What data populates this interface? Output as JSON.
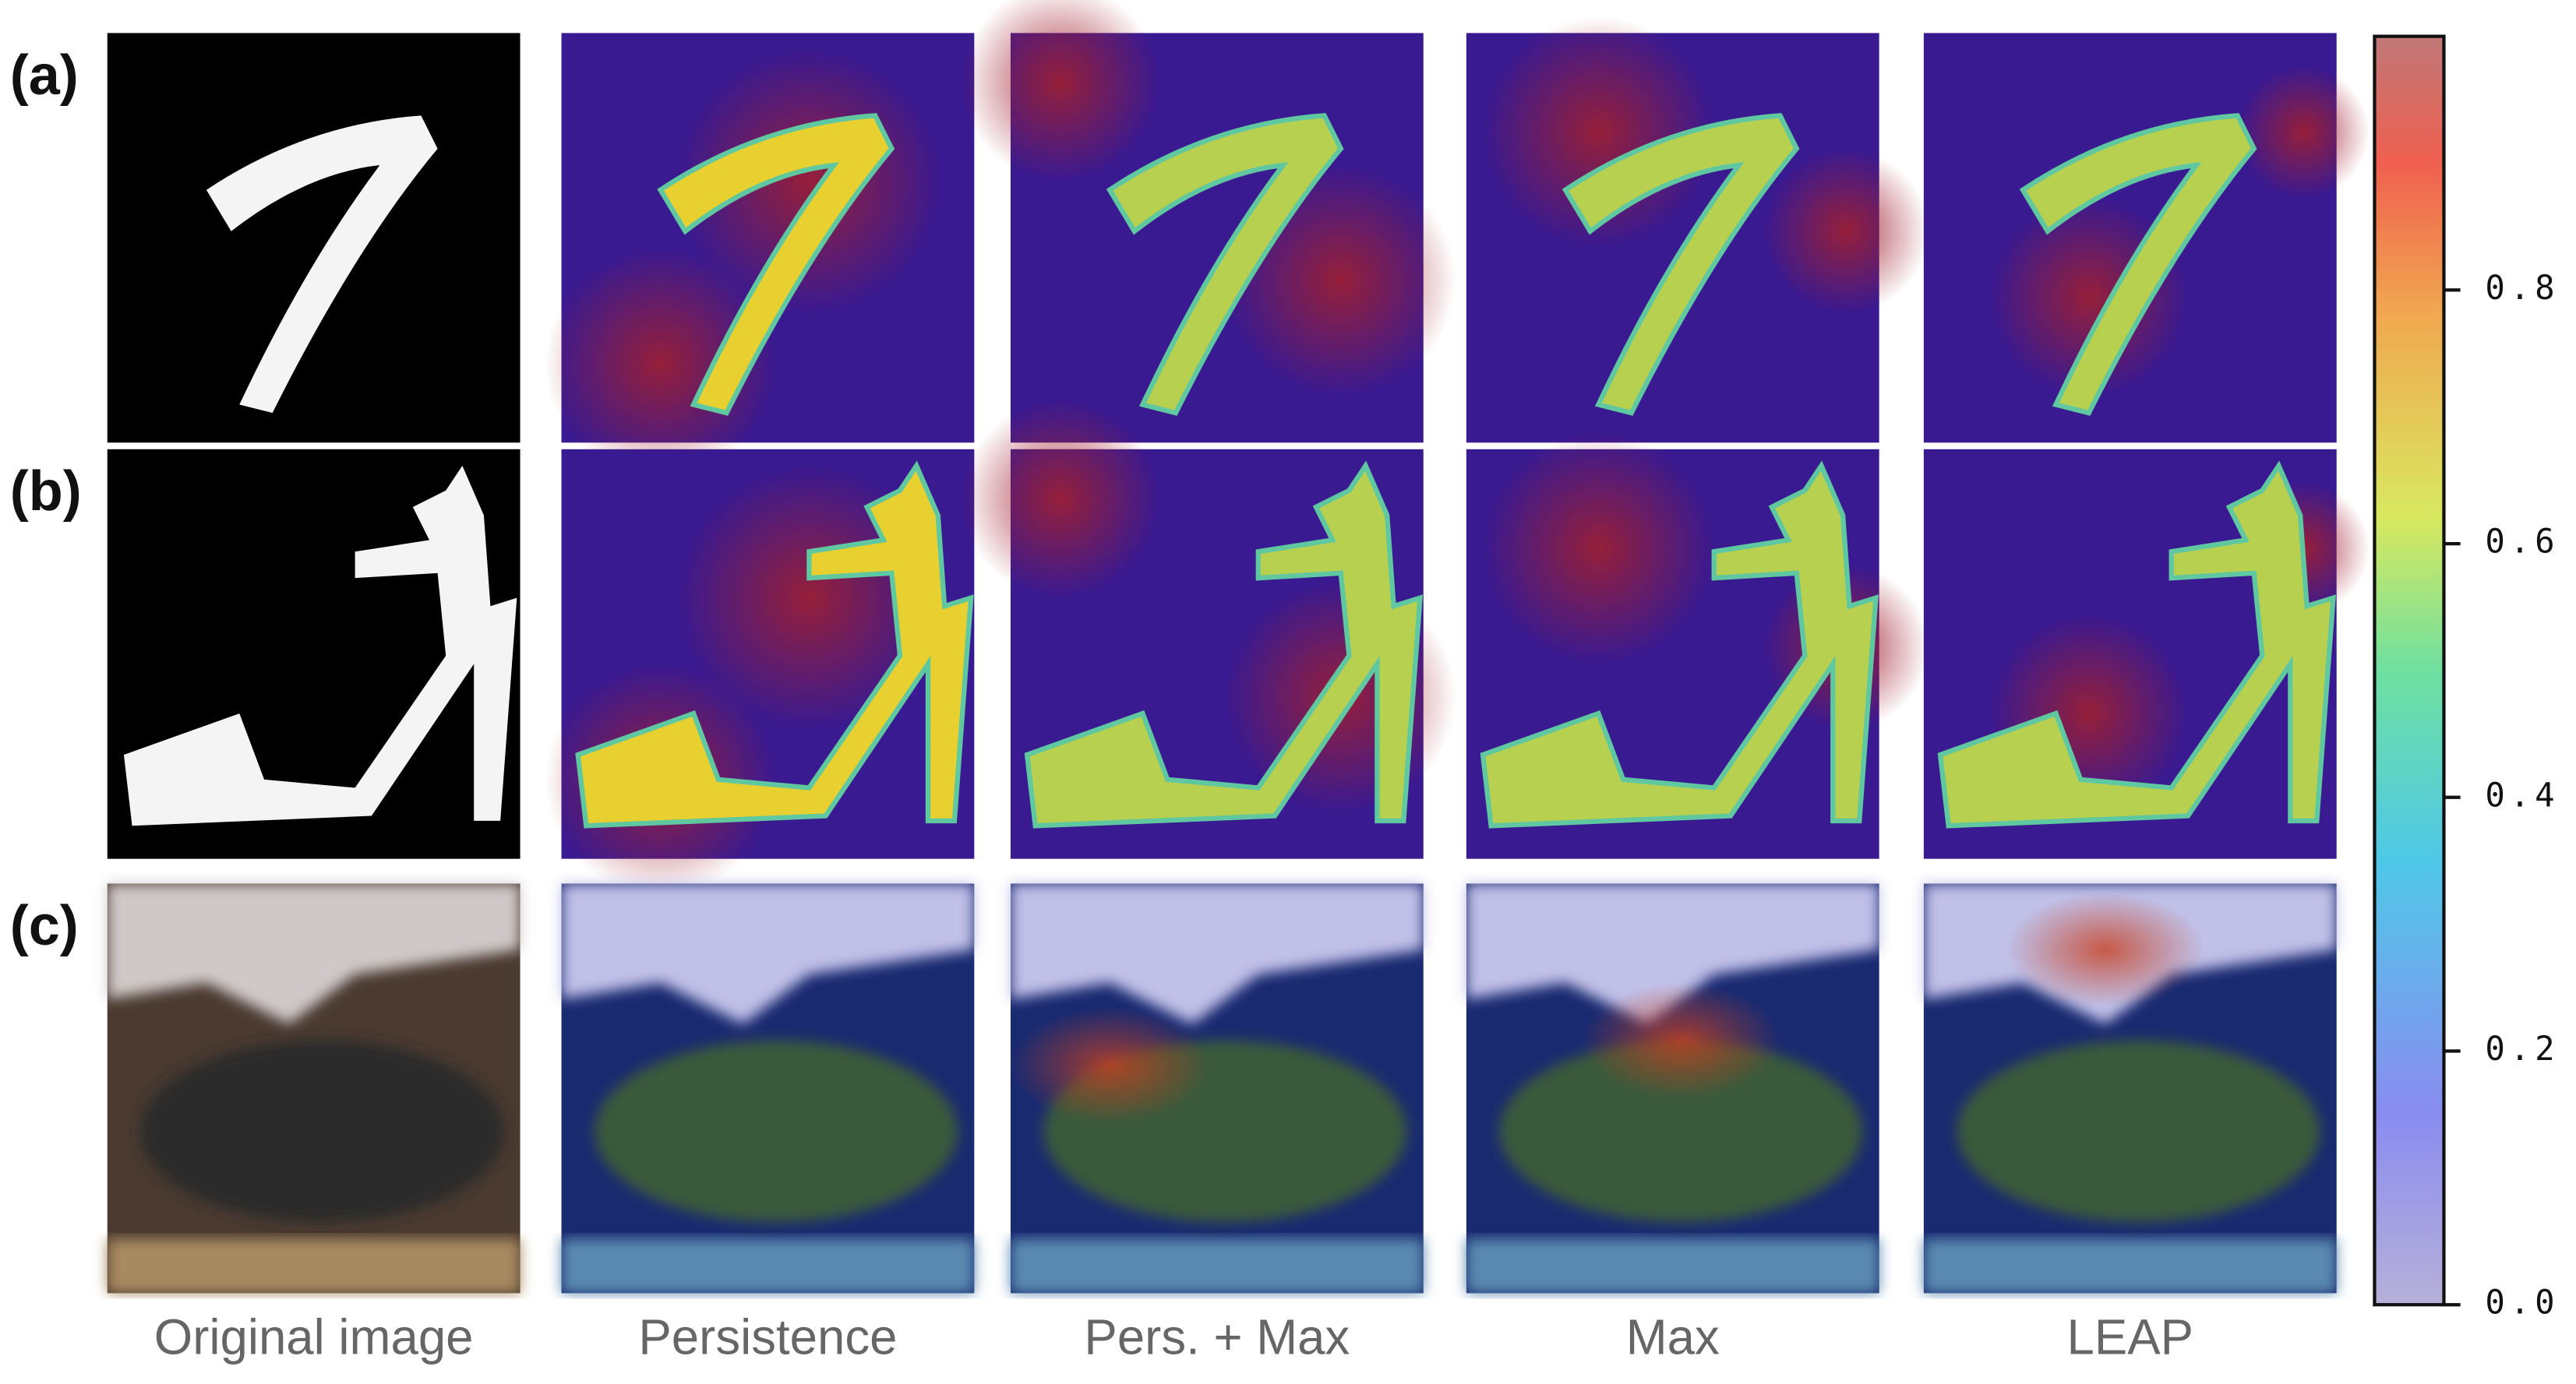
{
  "row_labels": [
    "(a)",
    "(b)",
    "(c)"
  ],
  "column_labels": [
    "Original image",
    "Persistence",
    "Pers. + Max",
    "Max",
    "LEAP"
  ],
  "colorbar": {
    "lim": [
      0,
      1
    ],
    "ticks": [
      {
        "value": 0,
        "label": "0.0"
      },
      {
        "value": 0.2,
        "label": "0.2"
      },
      {
        "value": 0.4,
        "label": "0.4"
      },
      {
        "value": 0.6,
        "label": "0.6"
      },
      {
        "value": 0.8,
        "label": "0.8"
      }
    ]
  }
}
